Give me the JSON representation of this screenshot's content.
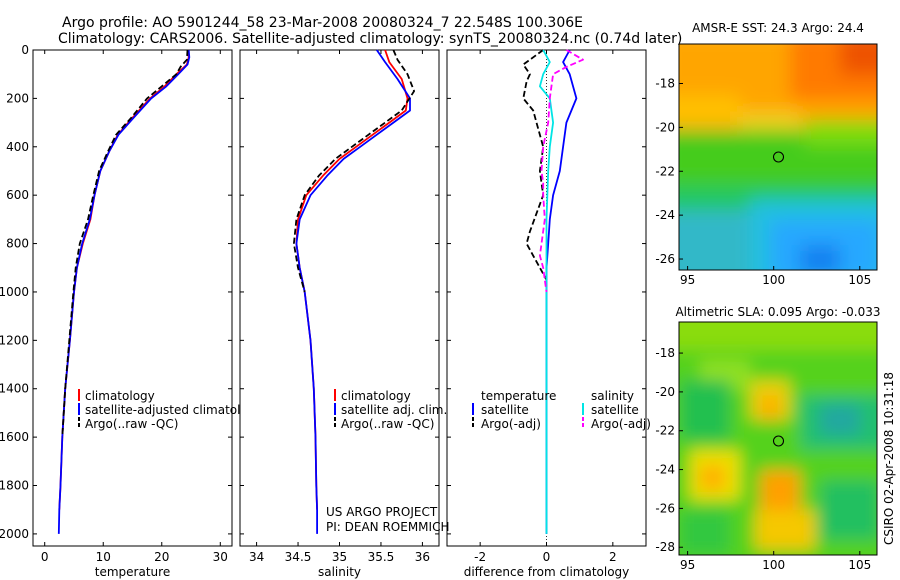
{
  "header": {
    "title_line1": "Argo profile: AO 5901244_58 23-Mar-2008 20080324_7 22.548S 100.306E",
    "title_line2": "Climatology: CARS2006. Satellite-adjusted climatology: synTS_20080324.nc (0.74d later)"
  },
  "credits": {
    "project_line1": "US ARGO PROJECT",
    "project_line2": "PI: DEAN ROEMMICH",
    "stamp": "CSIRO 02-Apr-2008 10:31:18"
  },
  "colors": {
    "climatology": "#ff0000",
    "satellite": "#0000ff",
    "argo": "#000000",
    "satellite_salinity": "#00e5e5",
    "argo_salinity_adj": "#ff00ff"
  },
  "chart_data": [
    {
      "type": "line",
      "id": "temperature",
      "xlabel": "temperature",
      "ylabel": "",
      "xlim": [
        -2,
        32
      ],
      "ylim": [
        2050,
        0
      ],
      "xticks": [
        0,
        10,
        20,
        30
      ],
      "yticks": [
        0,
        200,
        400,
        600,
        800,
        1000,
        1200,
        1400,
        1600,
        1800,
        2000
      ],
      "legend": {
        "position": "lower-right",
        "entries": [
          "climatology",
          "satellite-adjusted climatology",
          "Argo(..raw -QC)"
        ]
      },
      "series": [
        {
          "name": "climatology",
          "color": "#ff0000",
          "style": "solid",
          "x": [
            24.5,
            24.6,
            24.3,
            22.5,
            20.5,
            18.0,
            15.0,
            12.5,
            11.0,
            9.5,
            8.5,
            7.8,
            6.5,
            5.5,
            5.0,
            4.3,
            3.5,
            3.0,
            2.7,
            2.5
          ],
          "y": [
            0,
            30,
            60,
            100,
            150,
            200,
            280,
            350,
            420,
            500,
            600,
            700,
            800,
            900,
            1000,
            1200,
            1400,
            1600,
            1800,
            1900
          ]
        },
        {
          "name": "satellite-adjusted climatology",
          "color": "#0000ff",
          "style": "solid",
          "x": [
            24.6,
            24.7,
            24.4,
            22.8,
            20.8,
            18.2,
            15.2,
            12.6,
            11.0,
            9.5,
            8.5,
            7.7,
            6.4,
            5.5,
            5.0,
            4.3,
            3.5,
            3.0,
            2.7,
            2.5,
            2.4
          ],
          "y": [
            0,
            30,
            60,
            100,
            150,
            200,
            280,
            350,
            420,
            500,
            600,
            700,
            800,
            900,
            1000,
            1200,
            1400,
            1600,
            1800,
            1900,
            2000
          ]
        },
        {
          "name": "Argo(..raw -QC)",
          "color": "#000000",
          "style": "dashed",
          "x": [
            24.4,
            24.3,
            23.2,
            22.5,
            20.0,
            17.5,
            14.8,
            12.2,
            10.8,
            9.3,
            8.3,
            7.4,
            6.0,
            5.3,
            4.9,
            4.2,
            3.5,
            3.0
          ],
          "y": [
            0,
            40,
            70,
            100,
            150,
            200,
            280,
            350,
            420,
            500,
            600,
            700,
            800,
            900,
            1000,
            1200,
            1400,
            1600
          ]
        }
      ]
    },
    {
      "type": "line",
      "id": "salinity",
      "xlabel": "salinity",
      "ylabel": "",
      "xlim": [
        33.8,
        36.2
      ],
      "ylim": [
        2050,
        0
      ],
      "xticks": [
        34,
        34.5,
        35,
        35.5,
        36
      ],
      "legend": {
        "position": "lower-right",
        "entries": [
          "climatology",
          "satellite adj. clim.",
          "Argo(..raw -QC)"
        ]
      },
      "series": [
        {
          "name": "climatology",
          "color": "#ff0000",
          "style": "solid",
          "x": [
            35.55,
            35.6,
            35.75,
            35.82,
            35.8,
            35.6,
            35.4,
            35.2,
            35.0,
            34.8,
            34.6,
            34.5,
            34.48,
            34.52,
            34.58,
            34.65,
            34.69,
            34.71,
            34.72,
            34.73
          ],
          "y": [
            0,
            50,
            120,
            200,
            250,
            300,
            350,
            400,
            450,
            520,
            600,
            700,
            800,
            900,
            1000,
            1200,
            1400,
            1600,
            1800,
            1900
          ]
        },
        {
          "name": "satellite adj. clim.",
          "color": "#0000ff",
          "style": "solid",
          "x": [
            35.45,
            35.55,
            35.7,
            35.85,
            35.85,
            35.65,
            35.45,
            35.25,
            35.05,
            34.85,
            34.65,
            34.52,
            34.48,
            34.52,
            34.58,
            34.65,
            34.69,
            34.71,
            34.72,
            34.73,
            34.73
          ],
          "y": [
            0,
            50,
            120,
            200,
            250,
            300,
            350,
            400,
            450,
            520,
            600,
            700,
            800,
            900,
            1000,
            1200,
            1400,
            1600,
            1800,
            1900,
            2000
          ]
        },
        {
          "name": "Argo(..raw -QC)",
          "color": "#000000",
          "style": "dashed",
          "x": [
            35.65,
            35.7,
            35.82,
            35.9,
            35.75,
            35.55,
            35.35,
            35.15,
            34.95,
            34.75,
            34.58,
            34.48,
            34.45,
            34.5,
            34.58
          ],
          "y": [
            0,
            40,
            100,
            170,
            250,
            300,
            350,
            400,
            450,
            520,
            600,
            700,
            800,
            900,
            1000
          ]
        }
      ]
    },
    {
      "type": "line",
      "id": "difference",
      "xlabel": "difference from climatology",
      "ylabel": "",
      "xlim": [
        -3,
        3
      ],
      "ylim": [
        2050,
        0
      ],
      "xticks": [
        -2,
        0,
        2
      ],
      "legend": {
        "position": "lower-right",
        "groups": [
          {
            "title": "temperature",
            "entries": [
              "satellite",
              "Argo(-adj)"
            ]
          },
          {
            "title": "salinity",
            "entries": [
              "satellite",
              "Argo(-adj)"
            ]
          }
        ]
      },
      "series": [
        {
          "name": "temperature satellite",
          "color": "#0000ff",
          "style": "solid",
          "x": [
            0.7,
            0.5,
            0.7,
            0.9,
            0.6,
            0.5,
            0.4,
            0.2,
            0.1,
            0.05,
            0.0,
            0.0,
            0.0,
            0.0,
            0.0
          ],
          "y": [
            0,
            50,
            100,
            200,
            300,
            400,
            500,
            600,
            700,
            800,
            900,
            1000,
            1200,
            1600,
            2000
          ]
        },
        {
          "name": "temperature Argo(-adj)",
          "color": "#000000",
          "style": "dashed",
          "x": [
            -0.1,
            -0.4,
            -0.7,
            -0.5,
            -0.6,
            -0.7,
            -0.4,
            -0.3,
            -0.1,
            -0.2,
            -0.1,
            -0.5,
            -0.6,
            -0.4,
            -0.2,
            0.0
          ],
          "y": [
            0,
            30,
            60,
            100,
            130,
            200,
            250,
            300,
            400,
            500,
            600,
            750,
            800,
            850,
            900,
            950
          ]
        },
        {
          "name": "salinity satellite",
          "color": "#00e5e5",
          "style": "solid",
          "x": [
            -0.1,
            0.1,
            -0.1,
            -0.2,
            0.1,
            0.2,
            0.1,
            0.05,
            0.0,
            0.0,
            0.0,
            0.0
          ],
          "y": [
            0,
            50,
            100,
            150,
            200,
            300,
            400,
            500,
            700,
            1000,
            1500,
            2000
          ]
        },
        {
          "name": "salinity Argo(-adj)",
          "color": "#ff00ff",
          "style": "dashed",
          "x": [
            0.6,
            1.1,
            0.6,
            0.2,
            0.1,
            0.05,
            -0.1,
            -0.15,
            -0.1,
            -0.1,
            -0.05,
            -0.15,
            -0.2,
            -0.1,
            -0.05,
            0.0
          ],
          "y": [
            0,
            40,
            70,
            100,
            200,
            300,
            400,
            500,
            550,
            600,
            700,
            800,
            850,
            900,
            950,
            1000
          ]
        }
      ]
    },
    {
      "type": "heatmap",
      "id": "sst",
      "title": "AMSR-E SST: 24.3 Argo: 24.4",
      "xlim": [
        94.5,
        106
      ],
      "ylim": [
        -26.5,
        -16.2
      ],
      "xticks": [
        95,
        100,
        105
      ],
      "yticks": [
        -18,
        -20,
        -22,
        -24,
        -26
      ],
      "marker": {
        "x": 100.306,
        "y": -22.548
      }
    },
    {
      "type": "heatmap",
      "id": "sla",
      "title": "Altimetric SLA: 0.095 Argo: -0.033",
      "xlim": [
        94.5,
        106
      ],
      "ylim": [
        -28.4,
        -16.4
      ],
      "xticks": [
        95,
        100,
        105
      ],
      "yticks": [
        -18,
        -20,
        -22,
        -24,
        -26,
        -28
      ],
      "marker": {
        "x": 100.306,
        "y": -22.548
      }
    }
  ]
}
